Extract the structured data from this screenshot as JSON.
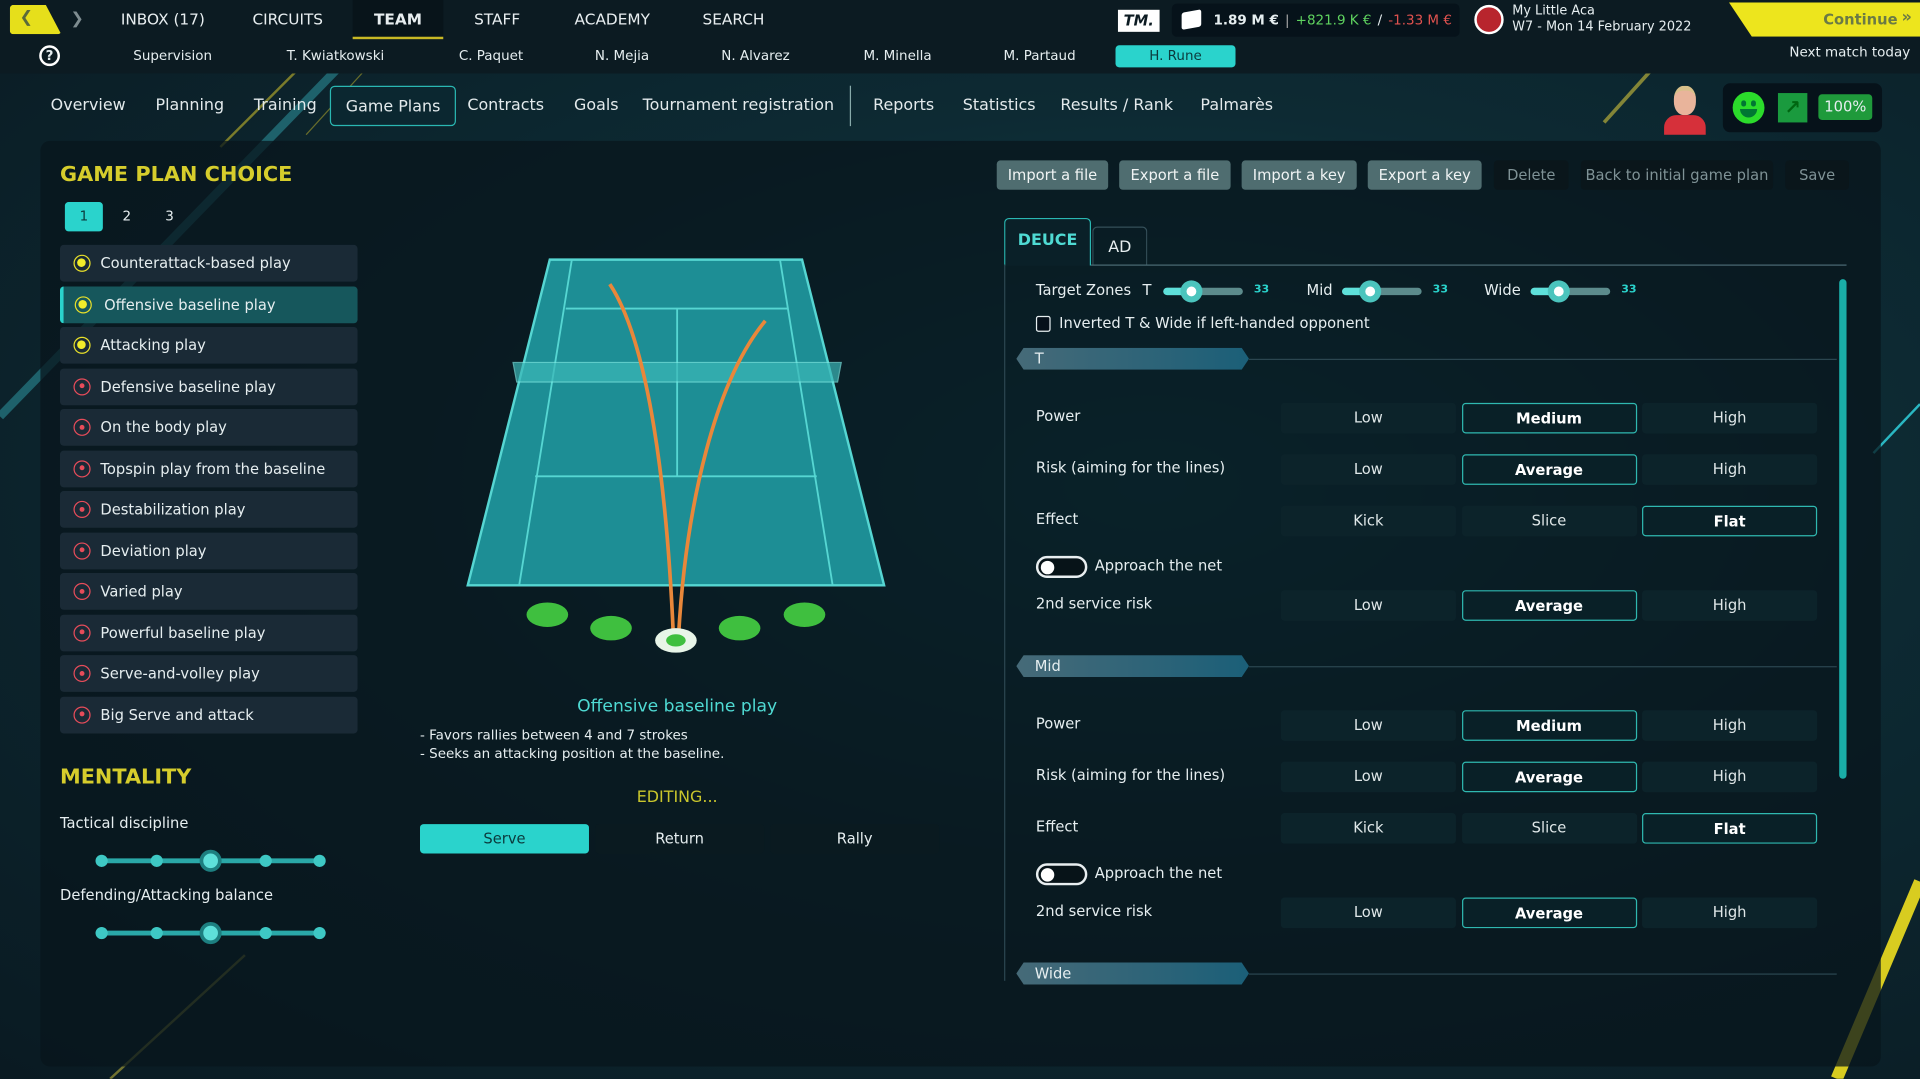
{
  "top_nav": {
    "items": [
      "INBOX (17)",
      "CIRCUITS",
      "TEAM",
      "STAFF",
      "ACADEMY",
      "SEARCH"
    ],
    "selected": "TEAM"
  },
  "staff_nav": {
    "items": [
      "Supervision",
      "T. Kwiatkowski",
      "C. Paquet",
      "N. Mejia",
      "N. Alvarez",
      "M. Minella",
      "M. Partaud",
      "H. Rune"
    ],
    "selected": "H. Rune"
  },
  "finance": {
    "logo": "TM.",
    "balance": "1.89 M €",
    "income": "+821.9 K €",
    "separator": "/",
    "expense": "-1.33 M €",
    "income_color": "#5fd35f",
    "expense_color": "#e0524f"
  },
  "club": {
    "name": "My Little Aca",
    "date": "W7 - Mon 14 February 2022"
  },
  "continue": {
    "label": "Continue",
    "next": "Next match today"
  },
  "sub_nav": {
    "items": [
      "Overview",
      "Planning",
      "Training",
      "Game Plans",
      "Contracts",
      "Goals",
      "Tournament registration",
      "Reports",
      "Statistics",
      "Results / Rank",
      "Palmarès"
    ],
    "selected": "Game Plans"
  },
  "player_status": {
    "mood_icon": "smiley-icon",
    "trend_icon": "arrow-up-right-icon",
    "fitness": "100%"
  },
  "game_plan": {
    "title": "GAME PLAN CHOICE",
    "slots": [
      "1",
      "2",
      "3"
    ],
    "selected_slot": "1",
    "plans": [
      {
        "name": "Counterattack-based play",
        "status": "available"
      },
      {
        "name": "Offensive baseline play",
        "status": "available",
        "selected": true
      },
      {
        "name": "Attacking play",
        "status": "available"
      },
      {
        "name": "Defensive baseline play",
        "status": "locked"
      },
      {
        "name": "On the body play",
        "status": "locked"
      },
      {
        "name": "Topspin play from the baseline",
        "status": "locked"
      },
      {
        "name": "Destabilization play",
        "status": "locked"
      },
      {
        "name": "Deviation play",
        "status": "locked"
      },
      {
        "name": "Varied play",
        "status": "locked"
      },
      {
        "name": "Powerful baseline play",
        "status": "locked"
      },
      {
        "name": "Serve-and-volley play",
        "status": "locked"
      },
      {
        "name": "Big Serve and attack",
        "status": "locked"
      }
    ]
  },
  "mentality": {
    "title": "MENTALITY",
    "sliders": [
      {
        "label": "Tactical discipline",
        "level": 3,
        "steps": 5
      },
      {
        "label": "Defending/Attacking balance",
        "level": 3,
        "steps": 5
      }
    ]
  },
  "description": {
    "title": "Offensive baseline play",
    "lines": [
      "- Favors rallies between 4 and 7 strokes",
      "- Seeks an attacking position at the baseline."
    ],
    "status": "EDITING..."
  },
  "modes": {
    "items": [
      "Serve",
      "Return",
      "Rally"
    ],
    "selected": "Serve"
  },
  "actions": [
    "Import a file",
    "Export a file",
    "Import a key",
    "Export a key",
    "Delete",
    "Back to initial game plan",
    "Save"
  ],
  "sides": {
    "items": [
      "DEUCE",
      "AD"
    ],
    "selected": "DEUCE"
  },
  "target_zones": {
    "label": "Target Zones",
    "zones": [
      {
        "name": "T",
        "value": "33"
      },
      {
        "name": "Mid",
        "value": "33"
      },
      {
        "name": "Wide",
        "value": "33"
      }
    ],
    "inverted_label": "Inverted T & Wide if left-handed opponent",
    "inverted_checked": false
  },
  "sections": [
    {
      "name": "T",
      "power": {
        "label": "Power",
        "options": [
          "Low",
          "Medium",
          "High"
        ],
        "selected": "Medium"
      },
      "risk": {
        "label": "Risk (aiming for the lines)",
        "options": [
          "Low",
          "Average",
          "High"
        ],
        "selected": "Average"
      },
      "effect": {
        "label": "Effect",
        "options": [
          "Kick",
          "Slice",
          "Flat"
        ],
        "selected": "Flat"
      },
      "approach": {
        "label": "Approach the net",
        "on": false
      },
      "second": {
        "label": "2nd service risk",
        "options": [
          "Low",
          "Average",
          "High"
        ],
        "selected": "Average"
      }
    },
    {
      "name": "Mid",
      "power": {
        "label": "Power",
        "options": [
          "Low",
          "Medium",
          "High"
        ],
        "selected": "Medium"
      },
      "risk": {
        "label": "Risk (aiming for the lines)",
        "options": [
          "Low",
          "Average",
          "High"
        ],
        "selected": "Average"
      },
      "effect": {
        "label": "Effect",
        "options": [
          "Kick",
          "Slice",
          "Flat"
        ],
        "selected": "Flat"
      },
      "approach": {
        "label": "Approach the net",
        "on": false
      },
      "second": {
        "label": "2nd service risk",
        "options": [
          "Low",
          "Average",
          "High"
        ],
        "selected": "Average"
      }
    },
    {
      "name": "Wide"
    }
  ]
}
